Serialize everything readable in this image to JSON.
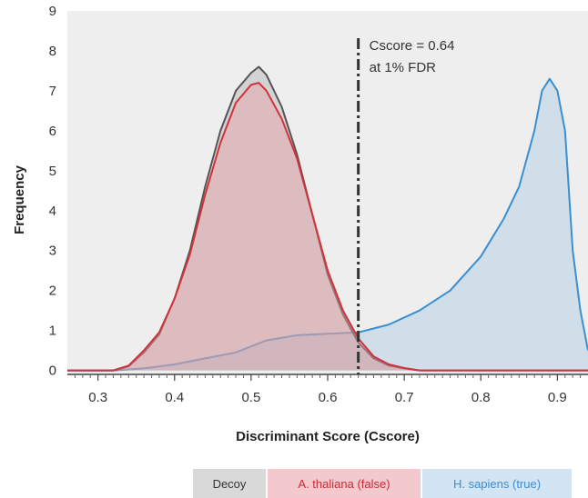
{
  "chart_data": {
    "type": "area",
    "title": "",
    "xlabel": "Discriminant Score (Cscore)",
    "ylabel": "Frequency",
    "xlim": [
      0.26,
      0.94
    ],
    "ylim": [
      -0.1,
      9
    ],
    "xticks": [
      0.3,
      0.4,
      0.5,
      0.6,
      0.7,
      0.8,
      0.9
    ],
    "xtick_labels": [
      "0.3",
      "0.4",
      "0.5",
      "0.6",
      "0.7",
      "0.8",
      "0.9"
    ],
    "yticks": [
      0,
      1,
      2,
      3,
      4,
      5,
      6,
      7,
      8,
      9
    ],
    "ytick_labels": [
      "0",
      "1",
      "2",
      "3",
      "4",
      "5",
      "6",
      "7",
      "8",
      "9"
    ],
    "grid": false,
    "legend_position": "bottom-right",
    "threshold": {
      "x": 0.64,
      "label_line1": "Cscore = 0.64",
      "label_line2": "at 1% FDR"
    },
    "series": [
      {
        "name": "Decoy",
        "line_color": "#555555",
        "fill_color": "#a0a0a0",
        "fill_opacity": 0.35,
        "legend_bg": "#d9d9d9",
        "legend_text_color": "#333333",
        "points": [
          [
            0.26,
            0
          ],
          [
            0.32,
            0
          ],
          [
            0.34,
            0.1
          ],
          [
            0.36,
            0.45
          ],
          [
            0.38,
            0.9
          ],
          [
            0.4,
            1.8
          ],
          [
            0.42,
            3.0
          ],
          [
            0.44,
            4.6
          ],
          [
            0.46,
            6.0
          ],
          [
            0.48,
            7.0
          ],
          [
            0.5,
            7.45
          ],
          [
            0.51,
            7.6
          ],
          [
            0.52,
            7.4
          ],
          [
            0.54,
            6.6
          ],
          [
            0.56,
            5.4
          ],
          [
            0.58,
            3.9
          ],
          [
            0.6,
            2.4
          ],
          [
            0.62,
            1.4
          ],
          [
            0.64,
            0.7
          ],
          [
            0.66,
            0.3
          ],
          [
            0.68,
            0.12
          ],
          [
            0.7,
            0.05
          ],
          [
            0.72,
            0
          ],
          [
            0.94,
            0
          ]
        ]
      },
      {
        "name": "A. thaliana (false)",
        "line_color": "#d2323c",
        "fill_color": "#e8a0a6",
        "fill_opacity": 0.45,
        "legend_bg": "#f3c9cd",
        "legend_text_color": "#cc2a36",
        "points": [
          [
            0.26,
            0
          ],
          [
            0.32,
            0
          ],
          [
            0.34,
            0.12
          ],
          [
            0.36,
            0.5
          ],
          [
            0.38,
            0.95
          ],
          [
            0.4,
            1.8
          ],
          [
            0.42,
            2.9
          ],
          [
            0.44,
            4.4
          ],
          [
            0.46,
            5.7
          ],
          [
            0.48,
            6.7
          ],
          [
            0.5,
            7.15
          ],
          [
            0.51,
            7.2
          ],
          [
            0.52,
            7.0
          ],
          [
            0.54,
            6.3
          ],
          [
            0.56,
            5.3
          ],
          [
            0.58,
            3.9
          ],
          [
            0.6,
            2.5
          ],
          [
            0.62,
            1.5
          ],
          [
            0.64,
            0.8
          ],
          [
            0.66,
            0.35
          ],
          [
            0.68,
            0.15
          ],
          [
            0.7,
            0.06
          ],
          [
            0.72,
            0
          ],
          [
            0.94,
            0
          ]
        ]
      },
      {
        "name": "H. sapiens (true)",
        "line_color": "#3b8fd1",
        "fill_color": "#a9c9e3",
        "fill_opacity": 0.45,
        "legend_bg": "#d3e4f2",
        "legend_text_color": "#3b8fd1",
        "points": [
          [
            0.26,
            0
          ],
          [
            0.32,
            0
          ],
          [
            0.36,
            0.05
          ],
          [
            0.4,
            0.15
          ],
          [
            0.44,
            0.3
          ],
          [
            0.48,
            0.45
          ],
          [
            0.52,
            0.75
          ],
          [
            0.56,
            0.88
          ],
          [
            0.6,
            0.92
          ],
          [
            0.64,
            0.95
          ],
          [
            0.68,
            1.15
          ],
          [
            0.72,
            1.5
          ],
          [
            0.76,
            2.0
          ],
          [
            0.8,
            2.85
          ],
          [
            0.83,
            3.8
          ],
          [
            0.85,
            4.6
          ],
          [
            0.87,
            6.0
          ],
          [
            0.88,
            7.0
          ],
          [
            0.89,
            7.3
          ],
          [
            0.9,
            7.0
          ],
          [
            0.91,
            6.0
          ],
          [
            0.92,
            3.0
          ],
          [
            0.93,
            1.5
          ],
          [
            0.94,
            0.5
          ]
        ]
      }
    ]
  }
}
